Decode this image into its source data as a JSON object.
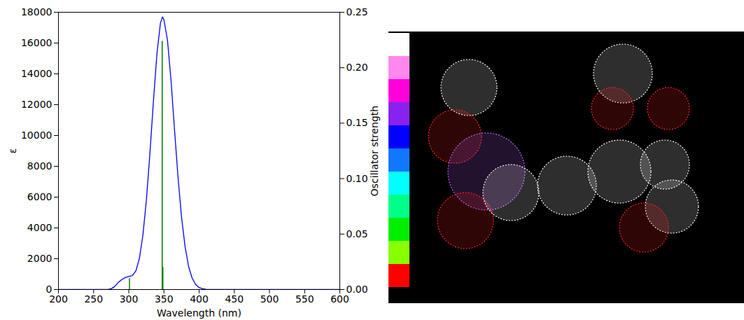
{
  "chart_data": {
    "type": "line",
    "x_label": "Wavelength (nm)",
    "y_label": "ε",
    "y2_label": "Oscillator strength",
    "xlim": [
      200,
      600
    ],
    "xticks": [
      200,
      250,
      300,
      350,
      400,
      450,
      500,
      550,
      600
    ],
    "ylim": [
      0,
      18000
    ],
    "yticks": [
      0,
      2000,
      4000,
      6000,
      8000,
      10000,
      12000,
      14000,
      16000,
      18000
    ],
    "y2lim": [
      0,
      0.25
    ],
    "y2ticks": [
      {
        "value": 0,
        "label": "0.00"
      },
      {
        "value": 0.05,
        "label": "0.05"
      },
      {
        "value": 0.1,
        "label": "0.10"
      },
      {
        "value": 0.15,
        "label": "0.15"
      },
      {
        "value": 0.2,
        "label": "0.20"
      },
      {
        "value": 0.25,
        "label": "0.25"
      }
    ],
    "series": [
      {
        "type": "line",
        "color": "#0000ff",
        "x": [
          200,
          250,
          270,
          275,
          280,
          285,
          290,
          295,
          300,
          305,
          310,
          315,
          320,
          325,
          330,
          335,
          340,
          345,
          348,
          350,
          355,
          360,
          365,
          370,
          375,
          380,
          385,
          390,
          395,
          400,
          405,
          410,
          420,
          450,
          500,
          550,
          600
        ],
        "values": [
          0,
          0,
          0,
          50,
          200,
          450,
          650,
          780,
          850,
          900,
          1200,
          2000,
          3500,
          5800,
          8800,
          12200,
          15300,
          17300,
          17700,
          17500,
          16200,
          13600,
          10400,
          7300,
          4700,
          2800,
          1500,
          750,
          330,
          130,
          50,
          15,
          0,
          0,
          0,
          0,
          0
        ]
      },
      {
        "type": "stick",
        "color": "#008000",
        "axis": "y2",
        "x": [
          301,
          347.5,
          348.5
        ],
        "values": [
          0.01,
          0.224,
          0.02
        ]
      }
    ]
  }
}
